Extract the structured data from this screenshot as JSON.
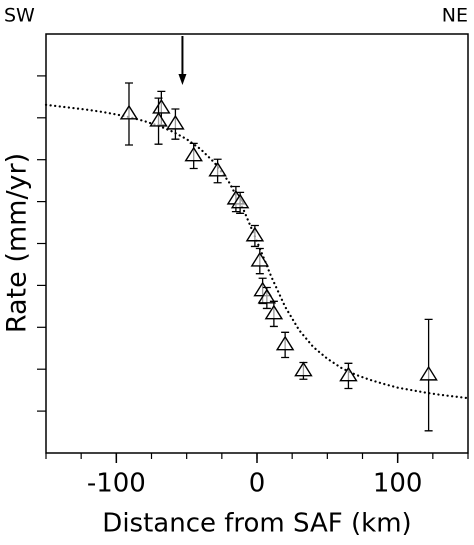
{
  "chart_data": {
    "type": "scatter",
    "corner_labels": [
      "SW",
      "NE"
    ],
    "xlabel": "Distance from SAF (km)",
    "ylabel": "Rate (mm/yr)",
    "x": [
      -91,
      -68,
      -70,
      -58,
      -45,
      -28,
      -15,
      -12,
      -1.5,
      2,
      4,
      7,
      12,
      20,
      33,
      65,
      122
    ],
    "values": [
      8.09,
      8.23,
      7.92,
      7.85,
      7.09,
      6.73,
      6.06,
      5.97,
      5.18,
      4.58,
      3.87,
      3.7,
      3.32,
      2.58,
      1.96,
      1.84,
      1.86
    ],
    "errors": [
      0.74,
      0.4,
      0.55,
      0.36,
      0.3,
      0.28,
      0.3,
      0.25,
      0.25,
      0.3,
      0.3,
      0.25,
      0.3,
      0.3,
      0.2,
      0.3,
      1.33
    ],
    "color": "#000000",
    "curve": {
      "x": [
        -150,
        -140,
        -130,
        -120,
        -110,
        -100,
        -90,
        -80,
        -70,
        -60,
        -50,
        -40,
        -30,
        -20,
        -10,
        0,
        10,
        20,
        30,
        40,
        50,
        60,
        70,
        80,
        90,
        100,
        110,
        120,
        130,
        140,
        150
      ],
      "values": [
        8.31,
        8.27,
        8.23,
        8.19,
        8.14,
        8.08,
        8.01,
        7.92,
        7.81,
        7.67,
        7.49,
        7.25,
        6.92,
        6.47,
        5.84,
        5.05,
        4.22,
        3.49,
        2.93,
        2.53,
        2.25,
        2.03,
        1.87,
        1.75,
        1.65,
        1.56,
        1.5,
        1.44,
        1.39,
        1.35,
        1.31
      ]
    },
    "arrow_x": -53,
    "xlim": [
      -150,
      150
    ],
    "xticks": [
      -100,
      0,
      100
    ],
    "xminorticks": [
      -150,
      -125,
      -100,
      -75,
      -50,
      -25,
      0,
      25,
      50,
      75,
      100,
      125,
      150
    ],
    "ylim": [
      0,
      10
    ],
    "yticks": [
      1,
      2,
      3,
      4,
      5,
      6,
      7,
      8,
      9
    ]
  }
}
